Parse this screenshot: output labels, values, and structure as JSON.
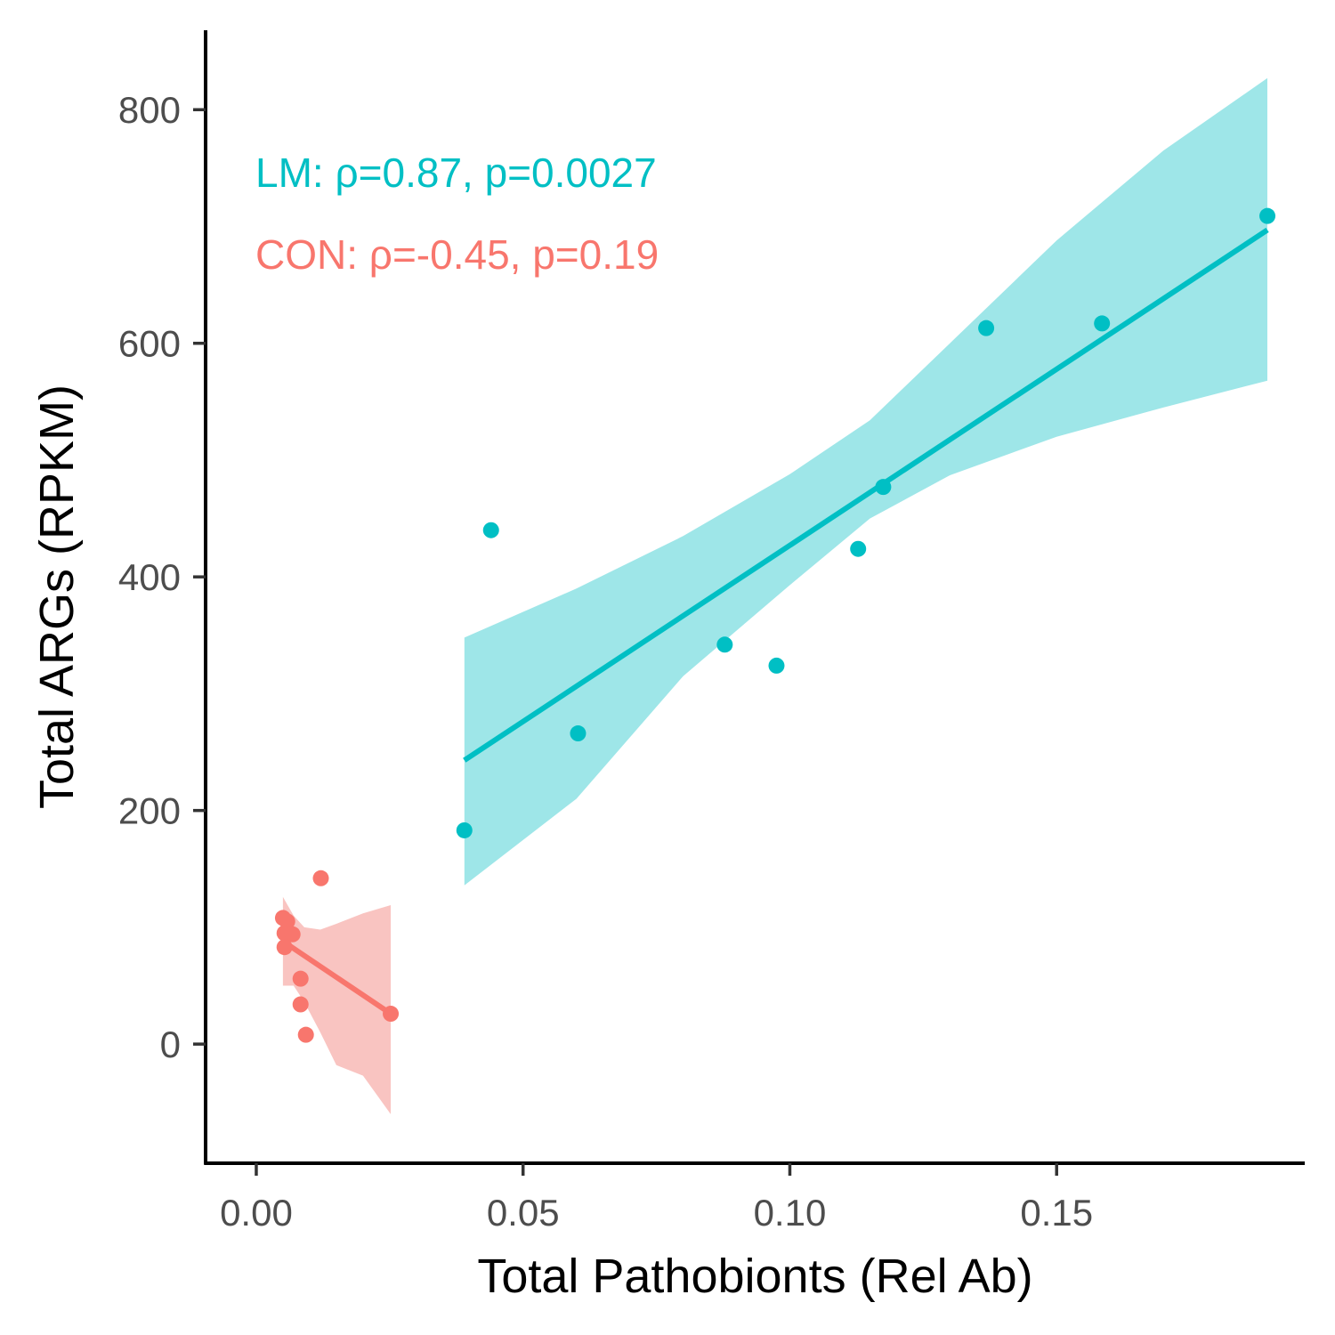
{
  "chart_data": {
    "type": "scatter",
    "xlabel": "Total Pathobionts (Rel Ab)",
    "ylabel": "Total ARGs (RPKM)",
    "xlim": [
      -0.0095,
      0.1965
    ],
    "ylim": [
      -102,
      868
    ],
    "x_ticks": [
      0.0,
      0.05,
      0.1,
      0.15
    ],
    "x_tick_labels": [
      "0.00",
      "0.05",
      "0.10",
      "0.15"
    ],
    "y_ticks": [
      0,
      200,
      400,
      600,
      800
    ],
    "y_tick_labels": [
      "0",
      "200",
      "400",
      "600",
      "800"
    ],
    "grid": false,
    "legend": "none",
    "annotations": [
      {
        "text": "LM: ρ=0.87, p=0.0027",
        "color": "#00BFC4"
      },
      {
        "text": "CON: ρ=-0.45, p=0.19",
        "color": "#F8766D"
      }
    ],
    "series": [
      {
        "color": "#00BFC4",
        "band_color": "#9EE6E8",
        "points": [
          {
            "x": 0.039,
            "y": 183
          },
          {
            "x": 0.044,
            "y": 440
          },
          {
            "x": 0.0603,
            "y": 266
          },
          {
            "x": 0.0878,
            "y": 342
          },
          {
            "x": 0.0975,
            "y": 324
          },
          {
            "x": 0.1128,
            "y": 424
          },
          {
            "x": 0.1175,
            "y": 477
          },
          {
            "x": 0.1368,
            "y": 613
          },
          {
            "x": 0.1585,
            "y": 617
          },
          {
            "x": 0.1895,
            "y": 709
          }
        ],
        "fit": {
          "x": [
            0.039,
            0.1895
          ],
          "y": [
            243,
            697
          ]
        },
        "ci_upper": [
          [
            0.039,
            348
          ],
          [
            0.06,
            390
          ],
          [
            0.08,
            435
          ],
          [
            0.1,
            488
          ],
          [
            0.115,
            534
          ],
          [
            0.13,
            600
          ],
          [
            0.15,
            688
          ],
          [
            0.17,
            765
          ],
          [
            0.1895,
            827
          ]
        ],
        "ci_lower": [
          [
            0.039,
            136
          ],
          [
            0.06,
            210
          ],
          [
            0.08,
            315
          ],
          [
            0.1,
            393
          ],
          [
            0.115,
            450
          ],
          [
            0.13,
            487
          ],
          [
            0.15,
            520
          ],
          [
            0.17,
            545
          ],
          [
            0.1895,
            568
          ]
        ]
      },
      {
        "color": "#F8766D",
        "band_color": "#F9C4C1",
        "points": [
          {
            "x": 0.005,
            "y": 108
          },
          {
            "x": 0.0058,
            "y": 105
          },
          {
            "x": 0.0053,
            "y": 95
          },
          {
            "x": 0.0068,
            "y": 94
          },
          {
            "x": 0.0053,
            "y": 83
          },
          {
            "x": 0.0083,
            "y": 56
          },
          {
            "x": 0.0083,
            "y": 34
          },
          {
            "x": 0.0093,
            "y": 8
          },
          {
            "x": 0.0121,
            "y": 142
          },
          {
            "x": 0.0252,
            "y": 26
          }
        ],
        "fit": {
          "x": [
            0.005,
            0.0252
          ],
          "y": [
            88,
            26
          ]
        },
        "ci_upper": [
          [
            0.005,
            126
          ],
          [
            0.007,
            110
          ],
          [
            0.009,
            100
          ],
          [
            0.012,
            98
          ],
          [
            0.015,
            103
          ],
          [
            0.02,
            112
          ],
          [
            0.0252,
            119
          ]
        ],
        "ci_lower": [
          [
            0.005,
            50
          ],
          [
            0.007,
            50
          ],
          [
            0.009,
            36
          ],
          [
            0.012,
            10
          ],
          [
            0.015,
            -18
          ],
          [
            0.02,
            -27
          ],
          [
            0.0252,
            -60
          ]
        ]
      }
    ]
  }
}
